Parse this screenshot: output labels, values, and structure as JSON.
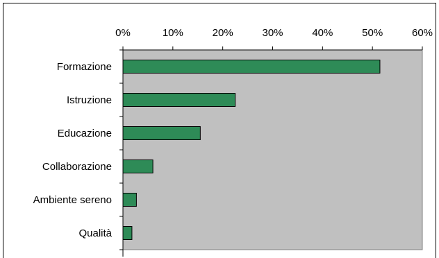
{
  "chart_data": {
    "type": "bar",
    "orientation": "horizontal",
    "categories": [
      "Formazione",
      "Istruzione",
      "Educazione",
      "Collaborazione",
      "Ambiente sereno",
      "Qualità"
    ],
    "values": [
      0.515,
      0.225,
      0.155,
      0.06,
      0.027,
      0.018
    ],
    "xlim": [
      0,
      0.6
    ],
    "xticks": [
      0,
      0.1,
      0.2,
      0.3,
      0.4,
      0.5,
      0.6
    ],
    "xtick_labels": [
      "0%",
      "10%",
      "20%",
      "30%",
      "40%",
      "50%",
      "60%"
    ],
    "x_axis_position": "top",
    "title": "",
    "xlabel": "",
    "ylabel": "",
    "grid": false,
    "legend": "none",
    "colors": {
      "bar": "#2e8b57",
      "bar_border": "#000000",
      "plot_background": "#c0c0c0",
      "axis": "#000000"
    }
  }
}
